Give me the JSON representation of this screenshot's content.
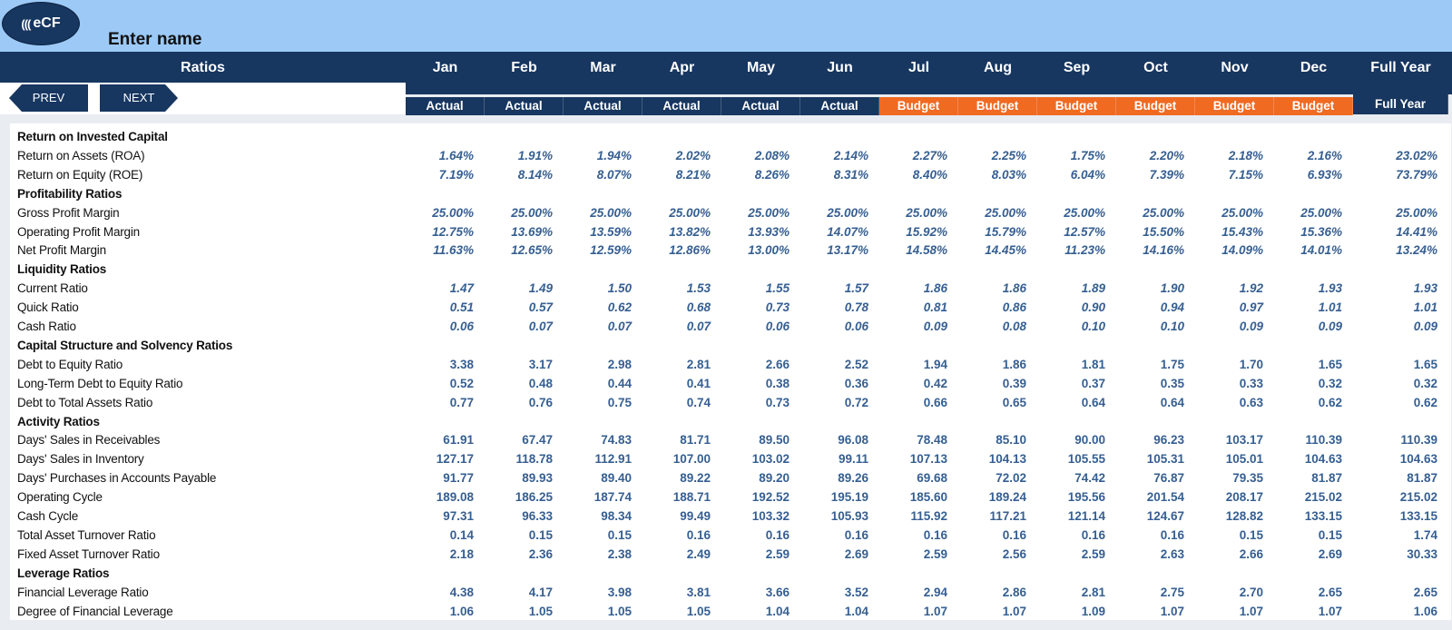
{
  "app": {
    "logo_text": "eCF",
    "logo_icon": "(((",
    "title": "Enter name"
  },
  "header": {
    "ratios_label": "Ratios",
    "months": [
      "Jan",
      "Feb",
      "Mar",
      "Apr",
      "May",
      "Jun",
      "Jul",
      "Aug",
      "Sep",
      "Oct",
      "Nov",
      "Dec",
      "Full Year"
    ],
    "subheaders": [
      "Actual",
      "Actual",
      "Actual",
      "Actual",
      "Actual",
      "Actual",
      "Budget",
      "Budget",
      "Budget",
      "Budget",
      "Budget",
      "Budget",
      "Full Year"
    ]
  },
  "nav": {
    "prev_label": "PREV",
    "next_label": "NEXT"
  },
  "colors": {
    "navy": "#173660",
    "budget_orange": "#f06a22",
    "value_blue": "#365f91",
    "top_band": "#9cc9f6"
  },
  "rows": [
    {
      "type": "section",
      "label": "Return on Invested Capital"
    },
    {
      "type": "data",
      "style": "italic",
      "label": "Return on Assets (ROA)",
      "values": [
        "1.64%",
        "1.91%",
        "1.94%",
        "2.02%",
        "2.08%",
        "2.14%",
        "2.27%",
        "2.25%",
        "1.75%",
        "2.20%",
        "2.18%",
        "2.16%",
        "23.02%"
      ]
    },
    {
      "type": "data",
      "style": "italic",
      "label": "Return on Equity (ROE)",
      "values": [
        "7.19%",
        "8.14%",
        "8.07%",
        "8.21%",
        "8.26%",
        "8.31%",
        "8.40%",
        "8.03%",
        "6.04%",
        "7.39%",
        "7.15%",
        "6.93%",
        "73.79%"
      ]
    },
    {
      "type": "section",
      "label": "Profitability Ratios"
    },
    {
      "type": "data",
      "style": "italic",
      "label": "Gross Profit Margin",
      "values": [
        "25.00%",
        "25.00%",
        "25.00%",
        "25.00%",
        "25.00%",
        "25.00%",
        "25.00%",
        "25.00%",
        "25.00%",
        "25.00%",
        "25.00%",
        "25.00%",
        "25.00%"
      ]
    },
    {
      "type": "data",
      "style": "italic",
      "label": "Operating Profit Margin",
      "values": [
        "12.75%",
        "13.69%",
        "13.59%",
        "13.82%",
        "13.93%",
        "14.07%",
        "15.92%",
        "15.79%",
        "12.57%",
        "15.50%",
        "15.43%",
        "15.36%",
        "14.41%"
      ]
    },
    {
      "type": "data",
      "style": "italic",
      "label": "Net Profit Margin",
      "values": [
        "11.63%",
        "12.65%",
        "12.59%",
        "12.86%",
        "13.00%",
        "13.17%",
        "14.58%",
        "14.45%",
        "11.23%",
        "14.16%",
        "14.09%",
        "14.01%",
        "13.24%"
      ]
    },
    {
      "type": "section",
      "label": "Liquidity Ratios"
    },
    {
      "type": "data",
      "style": "italic",
      "label": "Current Ratio",
      "values": [
        "1.47",
        "1.49",
        "1.50",
        "1.53",
        "1.55",
        "1.57",
        "1.86",
        "1.86",
        "1.89",
        "1.90",
        "1.92",
        "1.93",
        "1.93"
      ]
    },
    {
      "type": "data",
      "style": "italic",
      "label": "Quick Ratio",
      "values": [
        "0.51",
        "0.57",
        "0.62",
        "0.68",
        "0.73",
        "0.78",
        "0.81",
        "0.86",
        "0.90",
        "0.94",
        "0.97",
        "1.01",
        "1.01"
      ]
    },
    {
      "type": "data",
      "style": "italic",
      "label": "Cash Ratio",
      "values": [
        "0.06",
        "0.07",
        "0.07",
        "0.07",
        "0.06",
        "0.06",
        "0.09",
        "0.08",
        "0.10",
        "0.10",
        "0.09",
        "0.09",
        "0.09"
      ]
    },
    {
      "type": "section",
      "label": "Capital Structure and Solvency Ratios"
    },
    {
      "type": "data",
      "style": "normal",
      "label": "Debt to Equity Ratio",
      "values": [
        "3.38",
        "3.17",
        "2.98",
        "2.81",
        "2.66",
        "2.52",
        "1.94",
        "1.86",
        "1.81",
        "1.75",
        "1.70",
        "1.65",
        "1.65"
      ]
    },
    {
      "type": "data",
      "style": "normal",
      "label": "Long-Term Debt to Equity Ratio",
      "values": [
        "0.52",
        "0.48",
        "0.44",
        "0.41",
        "0.38",
        "0.36",
        "0.42",
        "0.39",
        "0.37",
        "0.35",
        "0.33",
        "0.32",
        "0.32"
      ]
    },
    {
      "type": "data",
      "style": "normal",
      "label": "Debt to Total Assets Ratio",
      "values": [
        "0.77",
        "0.76",
        "0.75",
        "0.74",
        "0.73",
        "0.72",
        "0.66",
        "0.65",
        "0.64",
        "0.64",
        "0.63",
        "0.62",
        "0.62"
      ]
    },
    {
      "type": "section",
      "label": "Activity Ratios"
    },
    {
      "type": "data",
      "style": "normal",
      "label": "Days' Sales in Receivables",
      "values": [
        "61.91",
        "67.47",
        "74.83",
        "81.71",
        "89.50",
        "96.08",
        "78.48",
        "85.10",
        "90.00",
        "96.23",
        "103.17",
        "110.39",
        "110.39"
      ]
    },
    {
      "type": "data",
      "style": "normal",
      "label": "Days' Sales in Inventory",
      "values": [
        "127.17",
        "118.78",
        "112.91",
        "107.00",
        "103.02",
        "99.11",
        "107.13",
        "104.13",
        "105.55",
        "105.31",
        "105.01",
        "104.63",
        "104.63"
      ]
    },
    {
      "type": "data",
      "style": "normal",
      "label": "Days' Purchases in Accounts Payable",
      "values": [
        "91.77",
        "89.93",
        "89.40",
        "89.22",
        "89.20",
        "89.26",
        "69.68",
        "72.02",
        "74.42",
        "76.87",
        "79.35",
        "81.87",
        "81.87"
      ]
    },
    {
      "type": "data",
      "style": "normal",
      "label": "Operating Cycle",
      "values": [
        "189.08",
        "186.25",
        "187.74",
        "188.71",
        "192.52",
        "195.19",
        "185.60",
        "189.24",
        "195.56",
        "201.54",
        "208.17",
        "215.02",
        "215.02"
      ]
    },
    {
      "type": "data",
      "style": "normal",
      "label": "Cash Cycle",
      "values": [
        "97.31",
        "96.33",
        "98.34",
        "99.49",
        "103.32",
        "105.93",
        "115.92",
        "117.21",
        "121.14",
        "124.67",
        "128.82",
        "133.15",
        "133.15"
      ]
    },
    {
      "type": "data",
      "style": "normal",
      "label": "Total Asset Turnover Ratio",
      "values": [
        "0.14",
        "0.15",
        "0.15",
        "0.16",
        "0.16",
        "0.16",
        "0.16",
        "0.16",
        "0.16",
        "0.16",
        "0.15",
        "0.15",
        "1.74"
      ]
    },
    {
      "type": "data",
      "style": "normal",
      "label": "Fixed Asset Turnover Ratio",
      "values": [
        "2.18",
        "2.36",
        "2.38",
        "2.49",
        "2.59",
        "2.69",
        "2.59",
        "2.56",
        "2.59",
        "2.63",
        "2.66",
        "2.69",
        "30.33"
      ]
    },
    {
      "type": "section",
      "label": "Leverage Ratios"
    },
    {
      "type": "data",
      "style": "normal",
      "label": "Financial Leverage Ratio",
      "values": [
        "4.38",
        "4.17",
        "3.98",
        "3.81",
        "3.66",
        "3.52",
        "2.94",
        "2.86",
        "2.81",
        "2.75",
        "2.70",
        "2.65",
        "2.65"
      ]
    },
    {
      "type": "data",
      "style": "normal",
      "label": "Degree of Financial Leverage",
      "values": [
        "1.06",
        "1.05",
        "1.05",
        "1.05",
        "1.04",
        "1.04",
        "1.07",
        "1.07",
        "1.09",
        "1.07",
        "1.07",
        "1.07",
        "1.06"
      ]
    }
  ]
}
